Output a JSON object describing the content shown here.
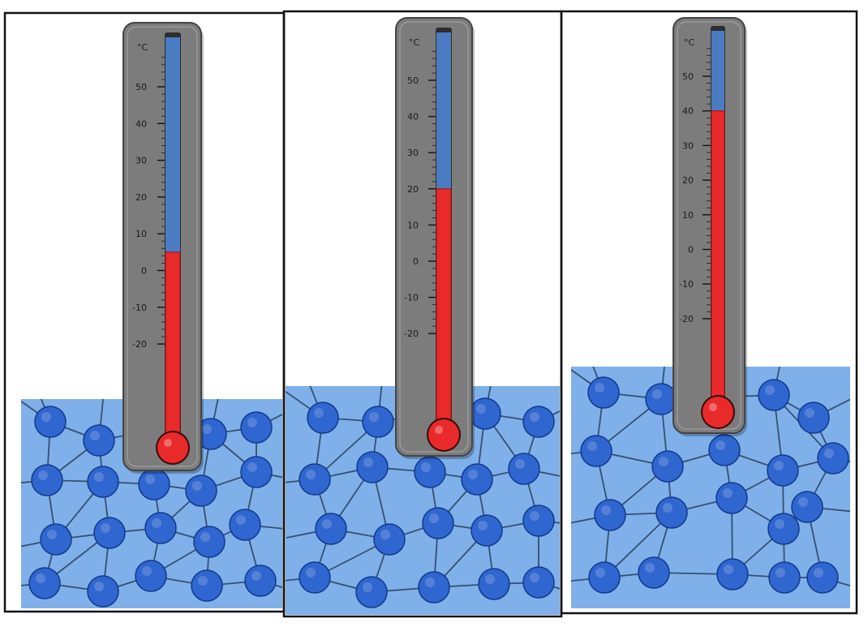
{
  "figure": {
    "unit_label": "°C",
    "scale_labels": [
      "50",
      "40",
      "30",
      "20",
      "10",
      "0",
      "-10",
      "-20"
    ],
    "colors": {
      "frame": "#111111",
      "background": "#ffffff",
      "material": "#7fb0ea",
      "particle": "#2f66cf",
      "particle_stroke": "#123a8c",
      "bond": "#35506f",
      "thermometer_body": "#7c7c7c",
      "thermometer_edge": "#444444",
      "tube_empty": "#4b7bc2",
      "mercury": "#e82a2a"
    },
    "panels": [
      {
        "name": "panel-1",
        "temperature_c": 5,
        "material_level": "low"
      },
      {
        "name": "panel-2",
        "temperature_c": 20,
        "material_level": "medium"
      },
      {
        "name": "panel-3",
        "temperature_c": 40,
        "material_level": "high"
      }
    ]
  }
}
